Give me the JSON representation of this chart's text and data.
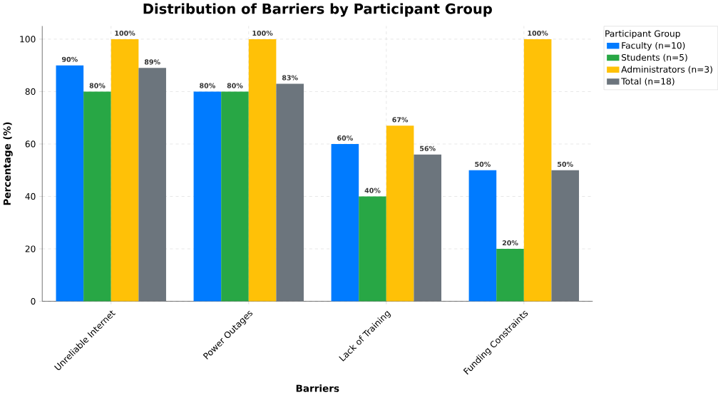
{
  "chart_data": {
    "type": "bar",
    "title": "Distribution of Barriers by Participant Group",
    "xlabel": "Barriers",
    "ylabel": "Percentage (%)",
    "legend_title": "Participant Group",
    "categories": [
      "Unreliable Internet",
      "Power Outages",
      "Lack of Training",
      "Funding Constraints"
    ],
    "series": [
      {
        "name": "Faculty (n=10)",
        "color": "#007bff",
        "values": [
          90,
          80,
          60,
          50
        ],
        "value_labels": [
          "90%",
          "80%",
          "60%",
          "50%"
        ]
      },
      {
        "name": "Students (n=5)",
        "color": "#28a745",
        "values": [
          80,
          80,
          40,
          20
        ],
        "value_labels": [
          "80%",
          "80%",
          "40%",
          "20%"
        ]
      },
      {
        "name": "Administrators (n=3)",
        "color": "#ffc107",
        "values": [
          100,
          100,
          67,
          100
        ],
        "value_labels": [
          "100%",
          "100%",
          "67%",
          "100%"
        ]
      },
      {
        "name": "Total (n=18)",
        "color": "#6c757d",
        "values": [
          89,
          83,
          56,
          50
        ],
        "value_labels": [
          "89%",
          "83%",
          "56%",
          "50%"
        ]
      }
    ],
    "ylim": [
      0,
      105
    ],
    "yticks": [
      0,
      20,
      40,
      60,
      80,
      100
    ],
    "grid": true,
    "legend": "top right"
  }
}
